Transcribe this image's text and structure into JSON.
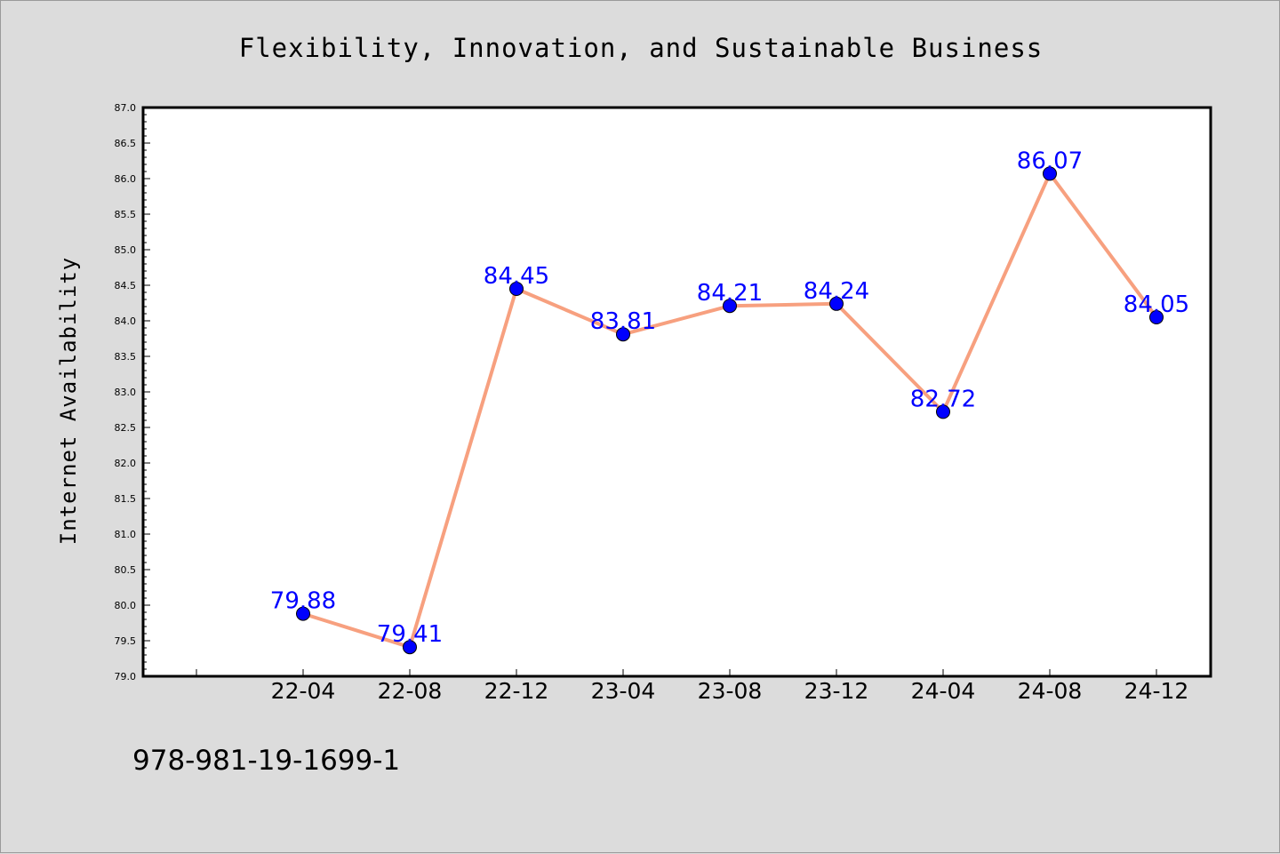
{
  "chart_data": {
    "type": "line",
    "title": "Flexibility, Innovation, and Sustainable Business",
    "xlabel": "",
    "ylabel": "Internet Availability",
    "categories": [
      "22-04",
      "22-08",
      "22-12",
      "23-04",
      "23-08",
      "23-12",
      "24-04",
      "24-08",
      "24-12"
    ],
    "series": [
      {
        "values": [
          79.88,
          79.41,
          84.45,
          83.81,
          84.21,
          84.24,
          82.72,
          86.07,
          84.05
        ]
      }
    ],
    "data_labels": [
      "79.88",
      "79.41",
      "84.45",
      "83.81",
      "84.21",
      "84.24",
      "82.72",
      "86.07",
      "84.05"
    ],
    "ylim": [
      79.0,
      87.0
    ],
    "yticks": [
      "79.0",
      "79.5",
      "80.0",
      "80.5",
      "81.0",
      "81.5",
      "82.0",
      "82.5",
      "83.0",
      "83.5",
      "84.0",
      "84.5",
      "85.0",
      "85.5",
      "86.0",
      "86.5",
      "87.0"
    ],
    "grid": false,
    "legend": "none",
    "line_color": "#f7a07f",
    "marker_color": "#0000ff",
    "label_color": "#0000ff"
  },
  "footer": {
    "isbn": "978-981-19-1699-1"
  }
}
